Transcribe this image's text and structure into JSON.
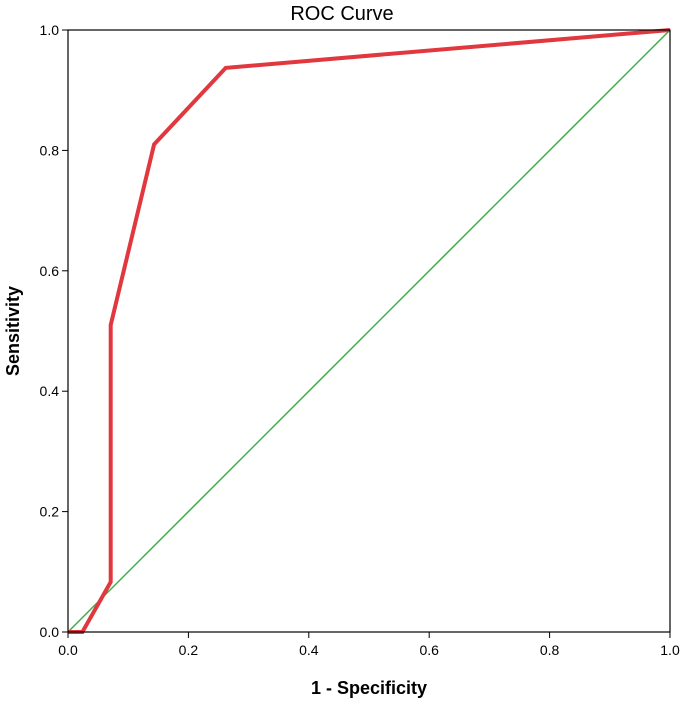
{
  "chart_data": {
    "type": "line",
    "title": "ROC Curve",
    "xlabel": "1 - Specificity",
    "ylabel": "Sensitivity",
    "xlim": [
      0,
      1
    ],
    "ylim": [
      0,
      1
    ],
    "x_ticks": [
      "0.0",
      "0.2",
      "0.4",
      "0.6",
      "0.8",
      "1.0"
    ],
    "y_ticks": [
      "0.0",
      "0.2",
      "0.4",
      "0.6",
      "0.8",
      "1.0"
    ],
    "grid": false,
    "legend": "none",
    "series": [
      {
        "color": "#e0383e",
        "points": [
          {
            "x": 0.0,
            "y": 0.0
          },
          {
            "x": 0.024,
            "y": 0.0
          },
          {
            "x": 0.071,
            "y": 0.083
          },
          {
            "x": 0.071,
            "y": 0.51
          },
          {
            "x": 0.143,
            "y": 0.81
          },
          {
            "x": 0.262,
            "y": 0.937
          },
          {
            "x": 1.0,
            "y": 1.0
          }
        ]
      },
      {
        "color": "#3fae49",
        "points": [
          {
            "x": 0.0,
            "y": 0.0
          },
          {
            "x": 1.0,
            "y": 1.0
          }
        ]
      }
    ]
  }
}
